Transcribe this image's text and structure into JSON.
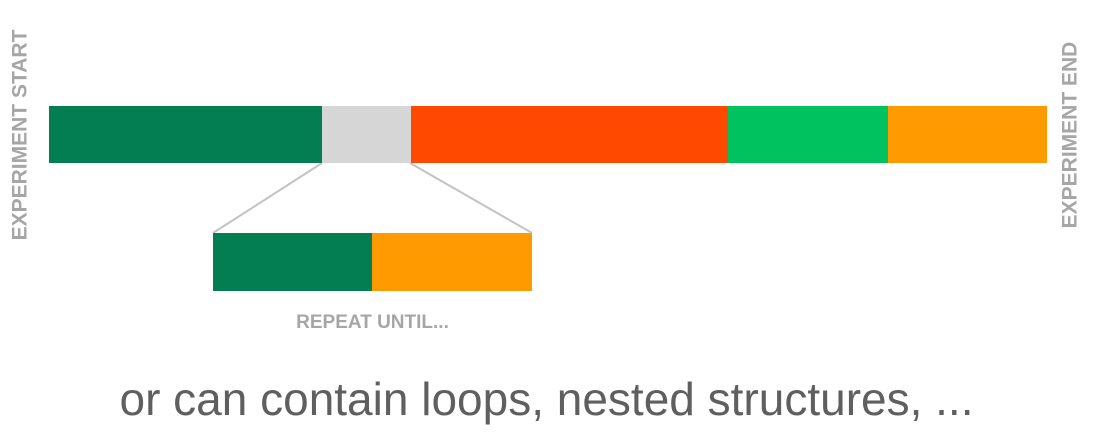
{
  "labels": {
    "start": "EXPERIMENT START",
    "end": "EXPERIMENT END",
    "repeat": "REPEAT UNTIL...",
    "caption": "or can contain loops, nested structures, ..."
  },
  "colors": {
    "dark_green": "#037e52",
    "light_gray": "#d6d6d6",
    "orange_red": "#ff4900",
    "bright_green": "#00c25e",
    "orange": "#ff9b00",
    "connector": "#c3c3c3",
    "label_gray": "#a6a6a6",
    "caption_gray": "#5f5f5f"
  },
  "main_timeline": [
    {
      "name": "dark-green-block",
      "color": "#037e52"
    },
    {
      "name": "loop-block",
      "color": "#d6d6d6"
    },
    {
      "name": "orange-red-block",
      "color": "#ff4900"
    },
    {
      "name": "bright-green-block",
      "color": "#00c25e"
    },
    {
      "name": "orange-block",
      "color": "#ff9b00"
    }
  ],
  "loop_contents": [
    {
      "name": "dark-green-block",
      "color": "#037e52"
    },
    {
      "name": "orange-block",
      "color": "#ff9b00"
    }
  ]
}
